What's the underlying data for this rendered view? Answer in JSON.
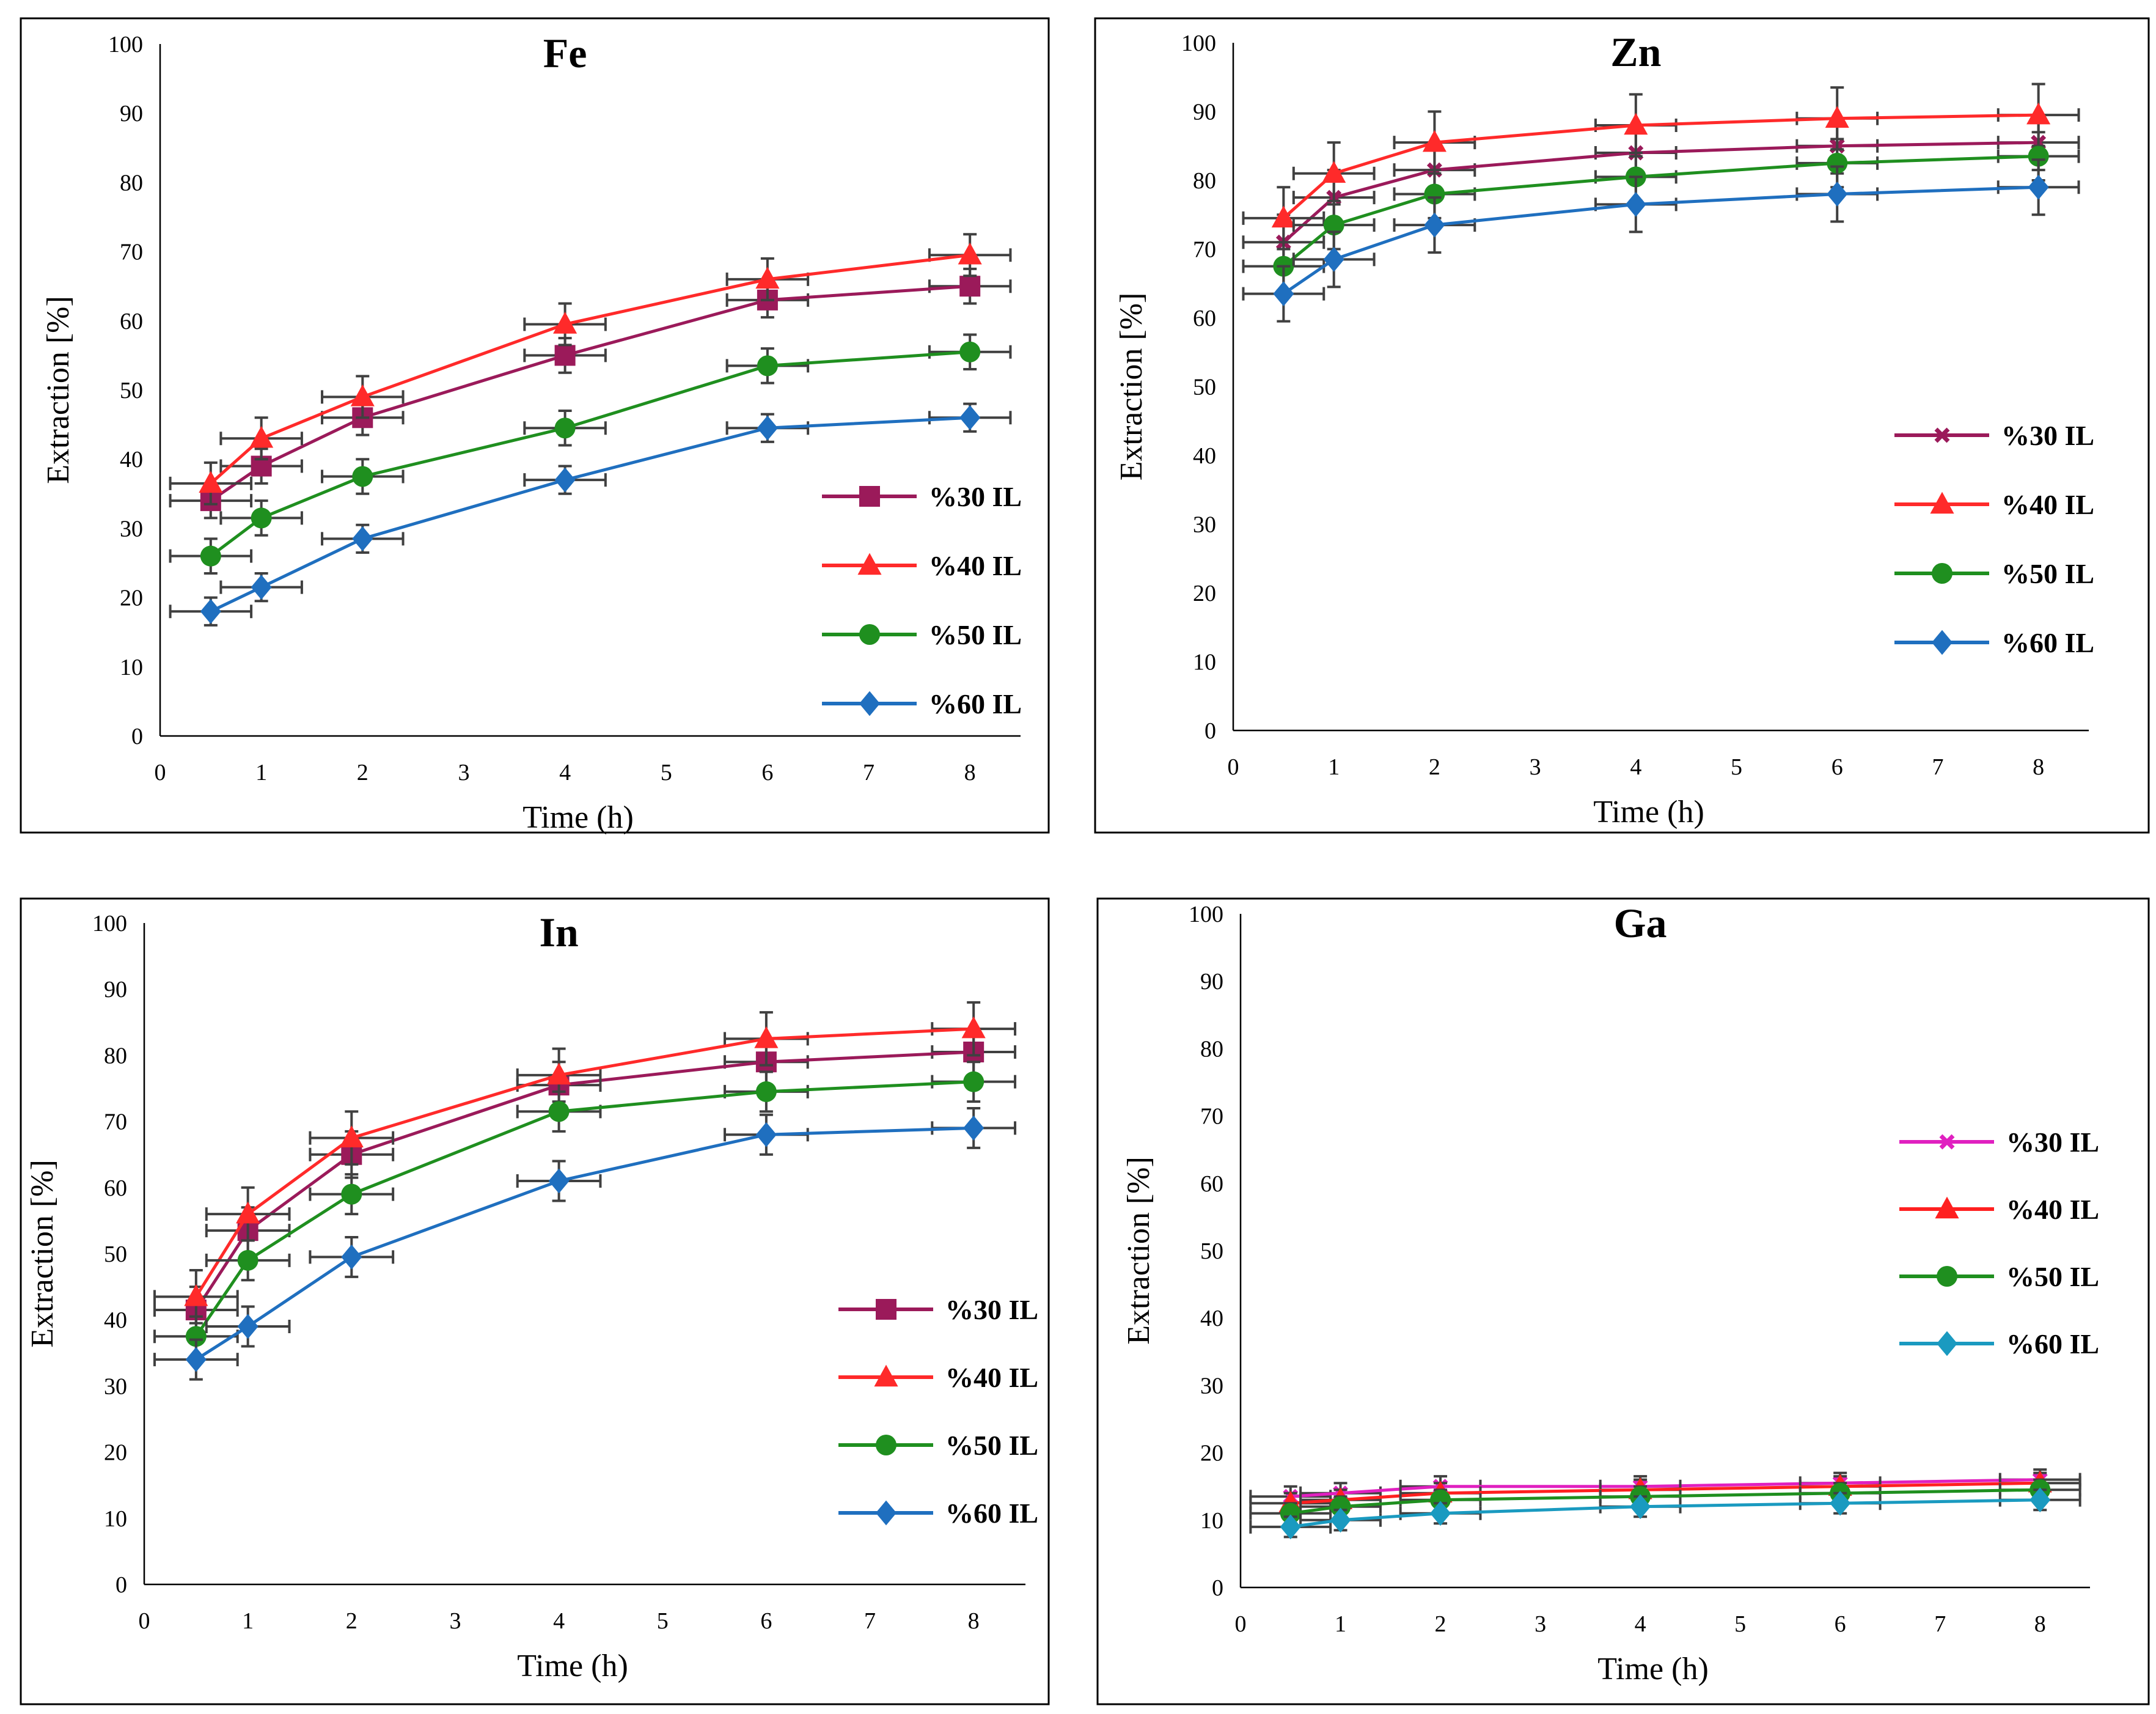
{
  "chart_data": [
    {
      "type": "line",
      "title": "Fe",
      "xlabel": "Time (h)",
      "ylabel": "Extraction [%]",
      "xlim": [
        0,
        8.5
      ],
      "ylim": [
        0,
        100
      ],
      "x_ticks": [
        0,
        1,
        2,
        3,
        4,
        5,
        6,
        7,
        8
      ],
      "y_ticks": [
        0,
        10,
        20,
        30,
        40,
        50,
        60,
        70,
        80,
        90,
        100
      ],
      "x": [
        0.5,
        1,
        2,
        4,
        6,
        8
      ],
      "legend_position": "right",
      "series": [
        {
          "name": "%30 IL",
          "color": "#9b1a5a",
          "marker": "square",
          "values": [
            34,
            39,
            46,
            55,
            63,
            65
          ],
          "yerr": 2.5,
          "xerr": 0.4
        },
        {
          "name": "%40 IL",
          "color": "#ff2a2a",
          "marker": "triangle",
          "values": [
            36.5,
            43,
            49,
            59.5,
            66,
            69.5
          ],
          "yerr": 3,
          "xerr": 0.4
        },
        {
          "name": "%50 IL",
          "color": "#1f8f1f",
          "marker": "circle",
          "values": [
            26,
            31.5,
            37.5,
            44.5,
            53.5,
            55.5
          ],
          "yerr": 2.5,
          "xerr": 0.4
        },
        {
          "name": "%60 IL",
          "color": "#1f6fbf",
          "marker": "diamond",
          "values": [
            18,
            21.5,
            28.5,
            37,
            44.5,
            46
          ],
          "yerr": 2,
          "xerr": 0.4
        }
      ]
    },
    {
      "type": "line",
      "title": "Zn",
      "xlabel": "Time (h)",
      "ylabel": "Extraction [%]",
      "xlim": [
        0,
        8.5
      ],
      "ylim": [
        0,
        100
      ],
      "x_ticks": [
        0,
        1,
        2,
        3,
        4,
        5,
        6,
        7,
        8
      ],
      "y_ticks": [
        0,
        10,
        20,
        30,
        40,
        50,
        60,
        70,
        80,
        90,
        100
      ],
      "x": [
        0.5,
        1,
        2,
        4,
        6,
        8
      ],
      "legend_position": "right",
      "series": [
        {
          "name": "%30 IL",
          "color": "#9b1a5a",
          "marker": "x",
          "values": [
            71,
            77.5,
            81.5,
            84,
            85,
            85.5
          ],
          "yerr": 4,
          "xerr": 0.4
        },
        {
          "name": "%40 IL",
          "color": "#ff2a2a",
          "marker": "triangle",
          "values": [
            74.5,
            81,
            85.5,
            88,
            89,
            89.5
          ],
          "yerr": 4.5,
          "xerr": 0.4
        },
        {
          "name": "%50 IL",
          "color": "#1f8f1f",
          "marker": "circle",
          "values": [
            67.5,
            73.5,
            78,
            80.5,
            82.5,
            83.5
          ],
          "yerr": 3.5,
          "xerr": 0.4
        },
        {
          "name": "%60 IL",
          "color": "#1f6fbf",
          "marker": "diamond",
          "values": [
            63.5,
            68.5,
            73.5,
            76.5,
            78,
            79
          ],
          "yerr": 4,
          "xerr": 0.4
        }
      ]
    },
    {
      "type": "line",
      "title": "In",
      "xlabel": "Time (h)",
      "ylabel": "Extraction [%]",
      "xlim": [
        0,
        8.5
      ],
      "ylim": [
        0,
        100
      ],
      "x_ticks": [
        0,
        1,
        2,
        3,
        4,
        5,
        6,
        7,
        8
      ],
      "y_ticks": [
        0,
        10,
        20,
        30,
        40,
        50,
        60,
        70,
        80,
        90,
        100
      ],
      "x": [
        0.5,
        1,
        2,
        4,
        6,
        8
      ],
      "legend_position": "bottom-right",
      "series": [
        {
          "name": "%30 IL",
          "color": "#9b1a5a",
          "marker": "square",
          "values": [
            41.5,
            53.5,
            65,
            75.5,
            79,
            80.5
          ],
          "yerr": 3.5,
          "xerr": 0.4
        },
        {
          "name": "%40 IL",
          "color": "#ff2a2a",
          "marker": "triangle",
          "values": [
            43.5,
            56,
            67.5,
            77,
            82.5,
            84
          ],
          "yerr": 4,
          "xerr": 0.4
        },
        {
          "name": "%50 IL",
          "color": "#1f8f1f",
          "marker": "circle",
          "values": [
            37.5,
            49,
            59,
            71.5,
            74.5,
            76
          ],
          "yerr": 3,
          "xerr": 0.4
        },
        {
          "name": "%60 IL",
          "color": "#1f6fbf",
          "marker": "diamond",
          "values": [
            34,
            39,
            49.5,
            61,
            68,
            69
          ],
          "yerr": 3,
          "xerr": 0.4
        }
      ]
    },
    {
      "type": "line",
      "title": "Ga",
      "xlabel": "Time (h)",
      "ylabel": "Extraction [%]",
      "xlim": [
        0,
        8.5
      ],
      "ylim": [
        0,
        100
      ],
      "x_ticks": [
        0,
        1,
        2,
        3,
        4,
        5,
        6,
        7,
        8
      ],
      "y_ticks": [
        0,
        10,
        20,
        30,
        40,
        50,
        60,
        70,
        80,
        90,
        100
      ],
      "x": [
        0.5,
        1,
        2,
        4,
        6,
        8
      ],
      "legend_position": "right",
      "series": [
        {
          "name": "%30 IL",
          "color": "#e020c0",
          "marker": "x",
          "values": [
            13.5,
            14,
            15,
            15,
            15.5,
            16
          ],
          "yerr": 1.5,
          "xerr": 0.4
        },
        {
          "name": "%40 IL",
          "color": "#ff2020",
          "marker": "triangle",
          "values": [
            12.5,
            13,
            14,
            14.5,
            15,
            15.5
          ],
          "yerr": 1.5,
          "xerr": 0.4
        },
        {
          "name": "%50 IL",
          "color": "#1f8f1f",
          "marker": "circle",
          "values": [
            11,
            12,
            13,
            13.5,
            14,
            14.5
          ],
          "yerr": 1.5,
          "xerr": 0.4
        },
        {
          "name": "%60 IL",
          "color": "#1a9ac0",
          "marker": "diamond",
          "values": [
            9,
            10,
            11,
            12,
            12.5,
            13
          ],
          "yerr": 1.5,
          "xerr": 0.4
        }
      ]
    }
  ]
}
